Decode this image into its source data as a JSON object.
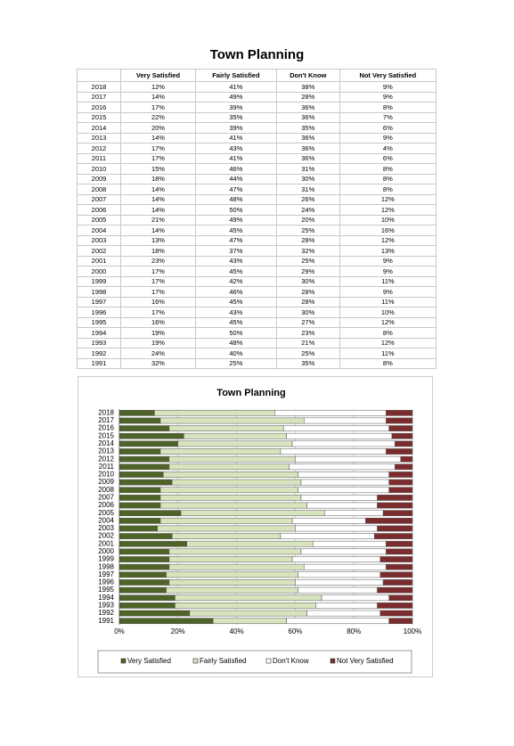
{
  "title": "Town Planning",
  "table": {
    "headers": [
      "Very Satisfied",
      "Fairly Satisfied",
      "Don't Know",
      "Not Very Satisfied"
    ],
    "rows": [
      [
        "2018",
        "12%",
        "41%",
        "38%",
        "9%"
      ],
      [
        "2017",
        "14%",
        "49%",
        "28%",
        "9%"
      ],
      [
        "2016",
        "17%",
        "39%",
        "36%",
        "8%"
      ],
      [
        "2015",
        "22%",
        "35%",
        "36%",
        "7%"
      ],
      [
        "2014",
        "20%",
        "39%",
        "35%",
        "6%"
      ],
      [
        "2013",
        "14%",
        "41%",
        "36%",
        "9%"
      ],
      [
        "2012",
        "17%",
        "43%",
        "36%",
        "4%"
      ],
      [
        "2011",
        "17%",
        "41%",
        "36%",
        "6%"
      ],
      [
        "2010",
        "15%",
        "46%",
        "31%",
        "8%"
      ],
      [
        "2009",
        "18%",
        "44%",
        "30%",
        "8%"
      ],
      [
        "2008",
        "14%",
        "47%",
        "31%",
        "8%"
      ],
      [
        "2007",
        "14%",
        "48%",
        "26%",
        "12%"
      ],
      [
        "2006",
        "14%",
        "50%",
        "24%",
        "12%"
      ],
      [
        "2005",
        "21%",
        "49%",
        "20%",
        "10%"
      ],
      [
        "2004",
        "14%",
        "45%",
        "25%",
        "16%"
      ],
      [
        "2003",
        "13%",
        "47%",
        "28%",
        "12%"
      ],
      [
        "2002",
        "18%",
        "37%",
        "32%",
        "13%"
      ],
      [
        "2001",
        "23%",
        "43%",
        "25%",
        "9%"
      ],
      [
        "2000",
        "17%",
        "45%",
        "29%",
        "9%"
      ],
      [
        "1999",
        "17%",
        "42%",
        "30%",
        "11%"
      ],
      [
        "1998",
        "17%",
        "46%",
        "28%",
        "9%"
      ],
      [
        "1997",
        "16%",
        "45%",
        "28%",
        "11%"
      ],
      [
        "1996",
        "17%",
        "43%",
        "30%",
        "10%"
      ],
      [
        "1995",
        "16%",
        "45%",
        "27%",
        "12%"
      ],
      [
        "1994",
        "19%",
        "50%",
        "23%",
        "8%"
      ],
      [
        "1993",
        "19%",
        "48%",
        "21%",
        "12%"
      ],
      [
        "1992",
        "24%",
        "40%",
        "25%",
        "11%"
      ],
      [
        "1991",
        "32%",
        "25%",
        "35%",
        "8%"
      ]
    ]
  },
  "chart_data": {
    "type": "bar",
    "orientation": "horizontal",
    "stacked": true,
    "title": "Town Planning",
    "categories": [
      "2018",
      "2017",
      "2016",
      "2015",
      "2014",
      "2013",
      "2012",
      "2011",
      "2010",
      "2009",
      "2008",
      "2007",
      "2006",
      "2005",
      "2004",
      "2003",
      "2002",
      "2001",
      "2000",
      "1999",
      "1998",
      "1997",
      "1996",
      "1995",
      "1994",
      "1993",
      "1992",
      "1991"
    ],
    "series": [
      {
        "name": "Very Satisfied",
        "color": "#4f6228",
        "values": [
          12,
          14,
          17,
          22,
          20,
          14,
          17,
          17,
          15,
          18,
          14,
          14,
          14,
          21,
          14,
          13,
          18,
          23,
          17,
          17,
          17,
          16,
          17,
          16,
          19,
          19,
          24,
          32
        ]
      },
      {
        "name": "Fairly Satisfied",
        "color": "#d7e4bd",
        "values": [
          41,
          49,
          39,
          35,
          39,
          41,
          43,
          41,
          46,
          44,
          47,
          48,
          50,
          49,
          45,
          47,
          37,
          43,
          45,
          42,
          46,
          45,
          43,
          45,
          50,
          48,
          40,
          25
        ]
      },
      {
        "name": "Don't Know",
        "color": "#ffffff",
        "values": [
          38,
          28,
          36,
          36,
          35,
          36,
          36,
          36,
          31,
          30,
          31,
          26,
          24,
          20,
          25,
          28,
          32,
          25,
          29,
          30,
          28,
          28,
          30,
          27,
          23,
          21,
          25,
          35
        ]
      },
      {
        "name": "Not Very Satisfied",
        "color": "#7b2c2c",
        "values": [
          9,
          9,
          8,
          7,
          6,
          9,
          4,
          6,
          8,
          8,
          8,
          12,
          12,
          10,
          16,
          12,
          13,
          9,
          9,
          11,
          9,
          11,
          10,
          12,
          8,
          12,
          11,
          8
        ]
      }
    ],
    "xlim": [
      0,
      100
    ],
    "xticks": [
      {
        "value": 0,
        "label": "0%"
      },
      {
        "value": 20,
        "label": "20%"
      },
      {
        "value": 40,
        "label": "40%"
      },
      {
        "value": 60,
        "label": "60%"
      },
      {
        "value": 80,
        "label": "80%"
      },
      {
        "value": 100,
        "label": "100%"
      }
    ],
    "grid": true,
    "legend": "bottom"
  }
}
